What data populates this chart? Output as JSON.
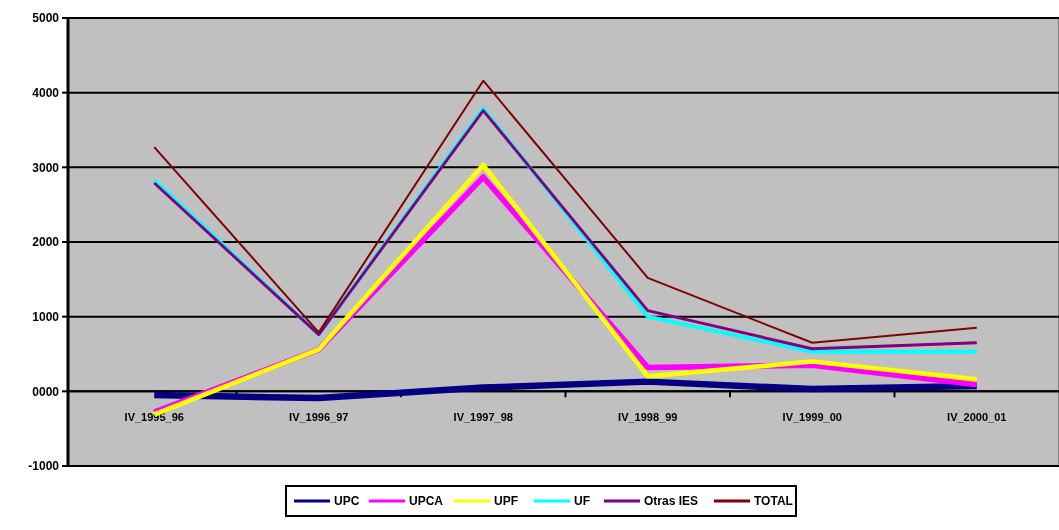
{
  "chart_data": {
    "type": "line",
    "categories": [
      "IV_1995_96",
      "IV_1996_97",
      "IV_1997_98",
      "IV_1998_99",
      "IV_1999_00",
      "IV_2000_01"
    ],
    "series": [
      {
        "name": "UPC",
        "color": "#000080",
        "values": [
          -50,
          -90,
          50,
          130,
          30,
          70
        ]
      },
      {
        "name": "UPCA",
        "color": "#ff00ff",
        "values": [
          -280,
          560,
          2870,
          320,
          350,
          90
        ]
      },
      {
        "name": "UPF",
        "color": "#ffff00",
        "values": [
          -310,
          560,
          3030,
          200,
          400,
          160
        ]
      },
      {
        "name": "UF",
        "color": "#00ffff",
        "values": [
          2830,
          760,
          3790,
          1000,
          530,
          530
        ]
      },
      {
        "name": "Otras IES",
        "color": "#800080",
        "values": [
          2790,
          760,
          3760,
          1080,
          570,
          650
        ]
      },
      {
        "name": "TOTAL",
        "color": "#800000",
        "values": [
          3270,
          790,
          4160,
          1520,
          650,
          850
        ]
      }
    ],
    "ylim": [
      -1000,
      5000
    ],
    "yticks": [
      {
        "value": -1000,
        "label": "-1000"
      },
      {
        "value": 0,
        "label": "0000"
      },
      1000,
      2000,
      3000,
      4000,
      5000
    ],
    "grid": "y",
    "legend": "bottom",
    "marker": "none",
    "line_style": "solid"
  }
}
